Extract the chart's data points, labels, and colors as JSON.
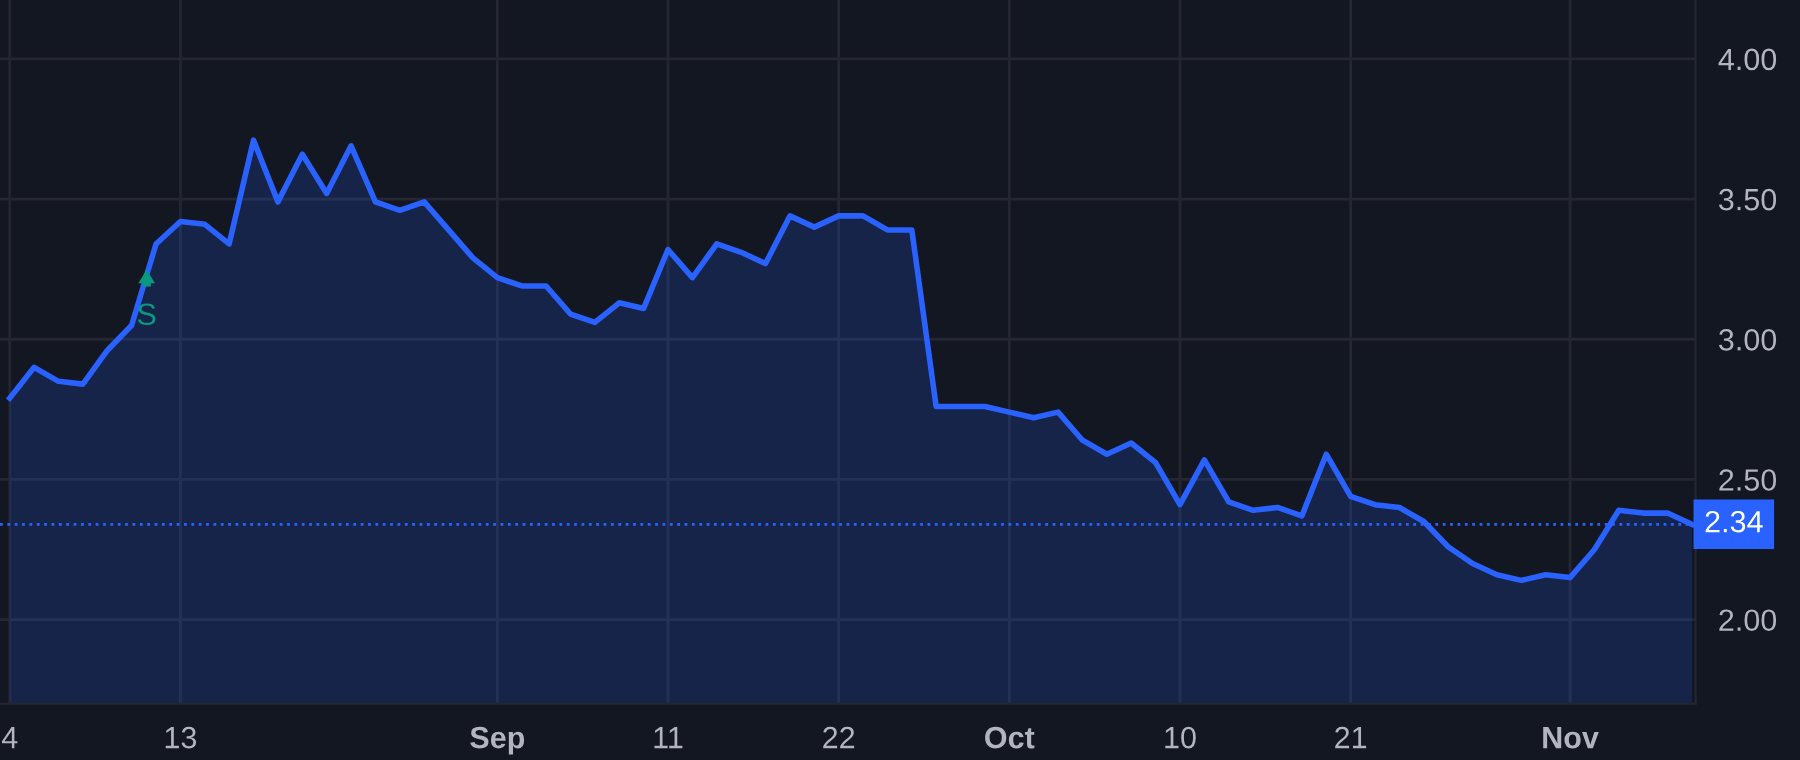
{
  "chart_data": {
    "type": "area",
    "categories": [
      "4",
      null,
      null,
      null,
      null,
      null,
      null,
      "13",
      null,
      null,
      null,
      null,
      null,
      null,
      null,
      null,
      null,
      null,
      null,
      null,
      "Sep",
      null,
      null,
      null,
      null,
      null,
      null,
      "11",
      null,
      null,
      null,
      null,
      null,
      null,
      "22",
      null,
      null,
      null,
      null,
      null,
      null,
      "Oct",
      null,
      null,
      null,
      null,
      null,
      null,
      "10",
      null,
      null,
      null,
      null,
      null,
      null,
      "21",
      null,
      null,
      null,
      null,
      null,
      null,
      null,
      null,
      "Nov",
      null,
      null,
      null,
      null,
      null
    ],
    "series": [
      {
        "color": "#2962ff",
        "values": [
          2.79,
          2.9,
          2.85,
          2.84,
          2.96,
          3.05,
          3.34,
          3.42,
          3.41,
          3.34,
          3.71,
          3.49,
          3.66,
          3.52,
          3.69,
          3.49,
          3.46,
          3.49,
          3.39,
          3.29,
          3.22,
          3.19,
          3.19,
          3.09,
          3.06,
          3.13,
          3.11,
          3.32,
          3.22,
          3.34,
          3.31,
          3.27,
          3.44,
          3.4,
          3.44,
          3.44,
          3.39,
          3.39,
          2.76,
          2.76,
          2.76,
          2.74,
          2.72,
          2.74,
          2.64,
          2.59,
          2.63,
          2.56,
          2.41,
          2.57,
          2.42,
          2.39,
          2.4,
          2.37,
          2.59,
          2.44,
          2.41,
          2.4,
          2.35,
          2.26,
          2.2,
          2.16,
          2.14,
          2.16,
          2.15,
          2.25,
          2.39,
          2.38,
          2.38,
          2.34
        ]
      }
    ],
    "ylim": [
      1.7,
      4.21
    ],
    "yticks": [
      {
        "value": 2,
        "label": "2.00"
      },
      {
        "value": 2.5,
        "label": "2.50"
      },
      {
        "value": 3,
        "label": "3.00"
      },
      {
        "value": 3.5,
        "label": "3.50"
      },
      {
        "value": 4,
        "label": "4.00"
      }
    ],
    "ref_lines": [
      {
        "axis": "y",
        "value": 2.34,
        "label": "2.34",
        "color": "#2962ff",
        "line_style": "dotted"
      }
    ],
    "annotations": [
      "S"
    ],
    "grid": true,
    "marker": "none",
    "line_style": "solid"
  }
}
